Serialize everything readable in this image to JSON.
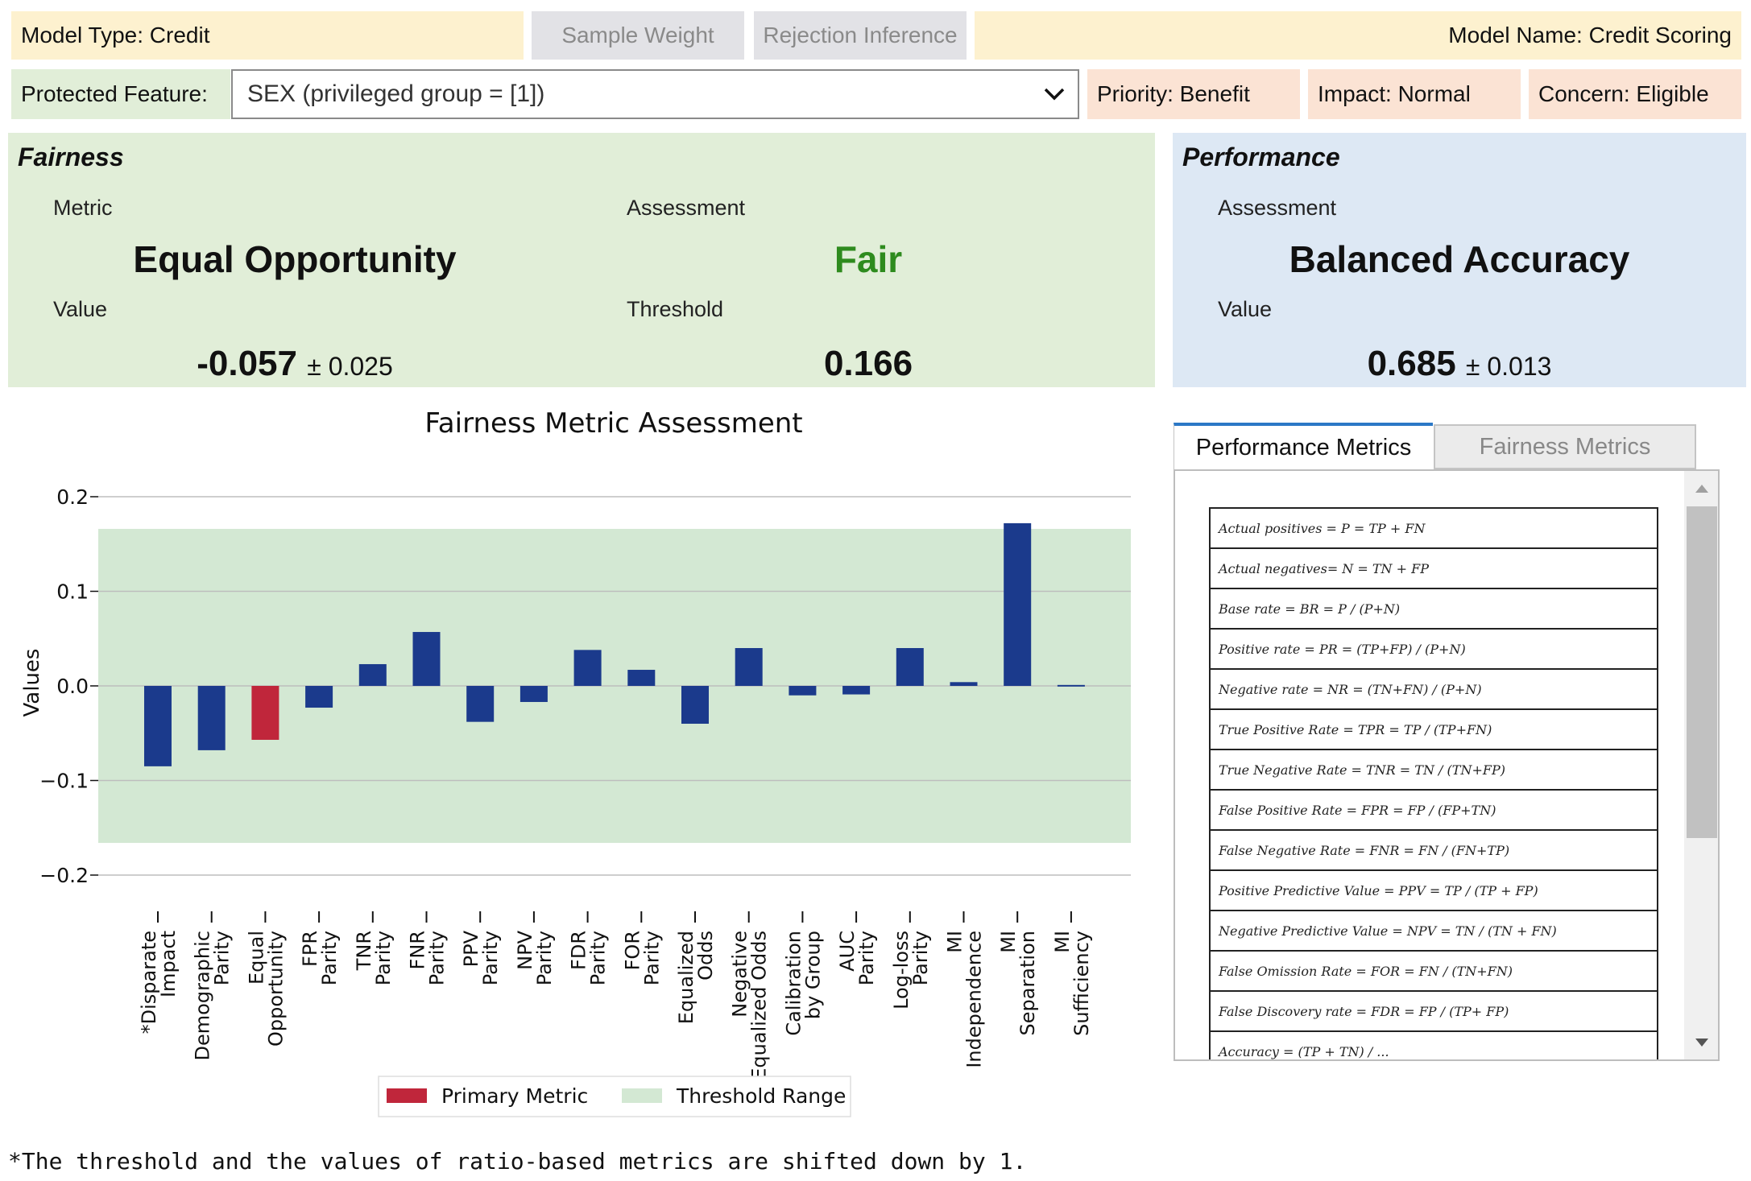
{
  "header": {
    "model_type": "Model Type: Credit",
    "sample_weight_button": "Sample Weight",
    "rejection_inference_button": "Rejection Inference",
    "model_name": "Model Name: Credit Scoring"
  },
  "protected": {
    "label": "Protected Feature:",
    "selected": "SEX (privileged group = [1])",
    "priority": "Priority: Benefit",
    "impact": "Impact: Normal",
    "concern": "Concern: Eligible"
  },
  "fairness": {
    "title": "Fairness",
    "metric_label": "Metric",
    "metric": "Equal Opportunity",
    "assessment_label": "Assessment",
    "assessment": "Fair",
    "assessment_color": "#2e8b1e",
    "value_label": "Value",
    "value": "-0.057",
    "value_err": "± 0.025",
    "threshold_label": "Threshold",
    "threshold": "0.166"
  },
  "performance": {
    "title": "Performance",
    "assessment_label": "Assessment",
    "metric": "Balanced Accuracy",
    "value_label": "Value",
    "value": "0.685",
    "value_err": "± 0.013"
  },
  "tabs": {
    "performance_metrics": "Performance Metrics",
    "fairness_metrics": "Fairness Metrics"
  },
  "formulas": [
    "Actual positives = P = TP + FN",
    "Actual negatives= N = TN + FP",
    "Base rate = BR = P / (P+N)",
    "Positive rate = PR = (TP+FP) / (P+N)",
    "Negative rate = NR = (TN+FN) / (P+N)",
    "True Positive Rate = TPR = TP / (TP+FN)",
    "True Negative Rate = TNR = TN / (TN+FP)",
    "False Positive Rate = FPR = FP / (FP+TN)",
    "False Negative Rate = FNR = FN / (FN+TP)",
    "Positive Predictive Value = PPV = TP / (TP + FP)",
    "Negative Predictive Value = NPV = TN / (TN + FN)",
    "False Omission Rate = FOR = FN / (TN+FN)",
    "False Discovery rate = FDR = FP / (TP+ FP)",
    "Accuracy = (TP + TN) / ..."
  ],
  "chart_data": {
    "type": "bar",
    "title": "Fairness Metric Assessment",
    "ylabel": "Values",
    "xlabel": "",
    "ylim": [
      -0.2,
      0.2
    ],
    "yticks": [
      0.2,
      0.1,
      0.0,
      -0.1,
      -0.2
    ],
    "ytick_labels": [
      "0.2",
      "0.1",
      "0.0",
      "−0.1",
      "−0.2"
    ],
    "threshold_range": [
      -0.166,
      0.166
    ],
    "grid": true,
    "legend_position": "bottom-center",
    "categories": [
      [
        "*Disparate",
        "Impact"
      ],
      [
        "Demographic",
        "Parity"
      ],
      [
        "Equal",
        "Opportunity"
      ],
      [
        "FPR",
        "Parity"
      ],
      [
        "TNR",
        "Parity"
      ],
      [
        "FNR",
        "Parity"
      ],
      [
        "PPV",
        "Parity"
      ],
      [
        "NPV",
        "Parity"
      ],
      [
        "FDR",
        "Parity"
      ],
      [
        "FOR",
        "Parity"
      ],
      [
        "Equalized",
        "Odds"
      ],
      [
        "Negative",
        "Equalized Odds"
      ],
      [
        "Calibration",
        "by Group"
      ],
      [
        "AUC",
        "Parity"
      ],
      [
        "Log-loss",
        "Parity"
      ],
      [
        "MI",
        "Independence"
      ],
      [
        "MI",
        "Separation"
      ],
      [
        "MI",
        "Sufficiency"
      ]
    ],
    "values": [
      -0.085,
      -0.068,
      -0.057,
      -0.023,
      0.023,
      0.057,
      -0.038,
      -0.017,
      0.038,
      0.017,
      -0.04,
      0.04,
      -0.01,
      -0.009,
      0.04,
      0.004,
      0.172,
      0.001
    ],
    "primary_index": 2,
    "colors": {
      "bar": "#1b3a8c",
      "primary": "#c0263b",
      "threshold": "#d3e8d3",
      "grid": "#bdbdbd"
    },
    "legend": [
      "Primary Metric",
      "Threshold Range"
    ]
  },
  "footnote": "*The threshold and the values of ratio-based metrics are shifted down by 1."
}
